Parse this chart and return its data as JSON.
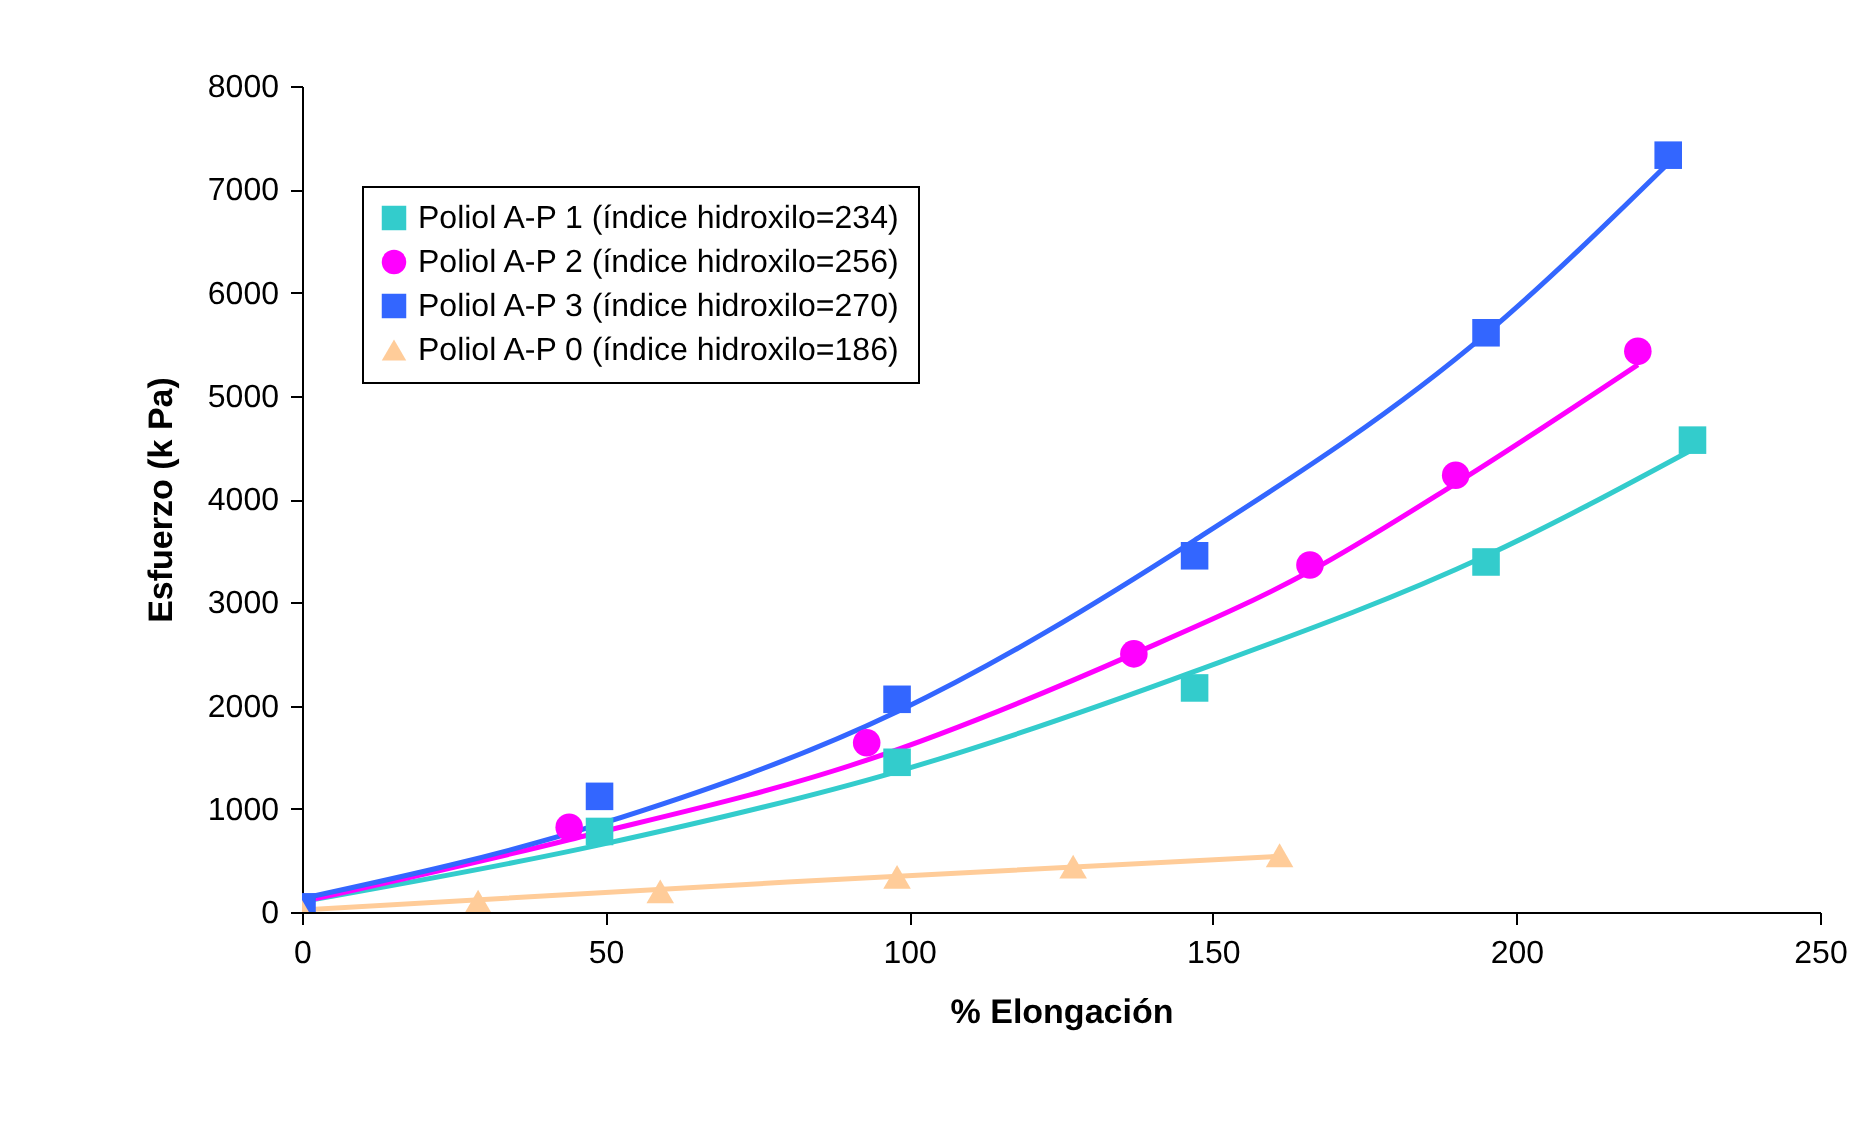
{
  "chart_data": {
    "type": "scatter",
    "xlabel": "% Elongación",
    "ylabel": "Esfuerzo (k Pa)",
    "xlim": [
      0,
      250
    ],
    "xticks": [
      0,
      50,
      100,
      150,
      200,
      250
    ],
    "ylim": [
      0,
      8000
    ],
    "yticks": [
      0,
      1000,
      2000,
      3000,
      4000,
      5000,
      6000,
      7000,
      8000
    ],
    "grid": false,
    "legend": "top left",
    "series": [
      {
        "name": "Poliol A-P 1 (índice hidroxilo=234)",
        "color": "#33cccc",
        "marker": "square",
        "x": [
          49,
          98,
          147,
          195,
          229
        ],
        "values": [
          780,
          1450,
          2170,
          3390,
          4570
        ]
      },
      {
        "name": "Poliol A-P 2 (índice hidroxilo=256)",
        "color": "#ff00ff",
        "marker": "circle",
        "x": [
          44,
          93,
          137,
          166,
          190,
          220
        ],
        "values": [
          820,
          1640,
          2500,
          3360,
          4230,
          5430
        ]
      },
      {
        "name": "Poliol A-P 3 (índice hidroxilo=270)",
        "color": "#3366ff",
        "marker": "square",
        "x": [
          0,
          49,
          98,
          147,
          195,
          225
        ],
        "values": [
          50,
          1120,
          2060,
          3450,
          5610,
          7330
        ]
      },
      {
        "name": "Poliol A-P 0 (índice hidroxilo=186)",
        "color": "#ffcc99",
        "marker": "triangle",
        "x": [
          0,
          29,
          59,
          98,
          127,
          161
        ],
        "values": [
          0,
          100,
          200,
          340,
          440,
          550
        ]
      },
      {
        "type": "line",
        "color": "#33cccc",
        "x": [
          0,
          49,
          98,
          147,
          195,
          229
        ],
        "values": [
          100,
          650,
          1360,
          2330,
          3450,
          4480
        ]
      },
      {
        "type": "line",
        "color": "#ff00ff",
        "x": [
          0,
          44,
          93,
          137,
          166,
          190,
          220
        ],
        "values": [
          100,
          700,
          1470,
          2500,
          3300,
          4150,
          5300
        ]
      },
      {
        "type": "line",
        "color": "#3366ff",
        "x": [
          0,
          49,
          98,
          147,
          195,
          225
        ],
        "values": [
          130,
          850,
          1940,
          3600,
          5600,
          7250
        ]
      },
      {
        "type": "line",
        "color": "#ffcc99",
        "x": [
          0,
          80,
          161
        ],
        "values": [
          20,
          290,
          540
        ]
      }
    ]
  }
}
